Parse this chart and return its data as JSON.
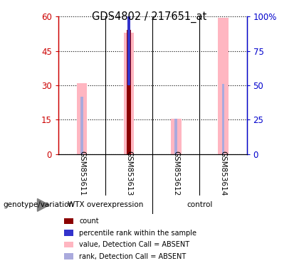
{
  "title": "GDS4802 / 217651_at",
  "samples": [
    "GSM853611",
    "GSM853613",
    "GSM853612",
    "GSM853614"
  ],
  "bar_positions": [
    1,
    2,
    3,
    4
  ],
  "pink_bar_values": [
    31,
    53,
    15.5,
    59.5
  ],
  "light_blue_bar_values": [
    25,
    30.5,
    15.5,
    30.5
  ],
  "red_bar_values": [
    0,
    54,
    0,
    0
  ],
  "red_bar_color": "#8B0000",
  "blue_bar_color": "#3333CC",
  "pink_bar_color": "#FFB6C1",
  "light_blue_bar_color": "#AAAADD",
  "ylim_left": [
    0,
    60
  ],
  "ylim_right": [
    0,
    100
  ],
  "yticks_left": [
    0,
    15,
    30,
    45,
    60
  ],
  "ytick_labels_left": [
    "0",
    "15",
    "30",
    "45",
    "60"
  ],
  "yticks_right": [
    0,
    25,
    50,
    75,
    100
  ],
  "ytick_labels_right": [
    "0",
    "25",
    "50",
    "75",
    "100%"
  ],
  "left_axis_color": "#CC0000",
  "right_axis_color": "#0000CC",
  "background_color": "#ffffff",
  "legend_items": [
    {
      "label": "count",
      "color": "#8B0000"
    },
    {
      "label": "percentile rank within the sample",
      "color": "#3333CC"
    },
    {
      "label": "value, Detection Call = ABSENT",
      "color": "#FFB6C1"
    },
    {
      "label": "rank, Detection Call = ABSENT",
      "color": "#AAAADD"
    }
  ],
  "group_label": "genotype/variation",
  "group1_label": "WTX overexpression",
  "group2_label": "control",
  "group_bg_color": "#66FF66",
  "sample_bg_color": "#CCCCCC"
}
